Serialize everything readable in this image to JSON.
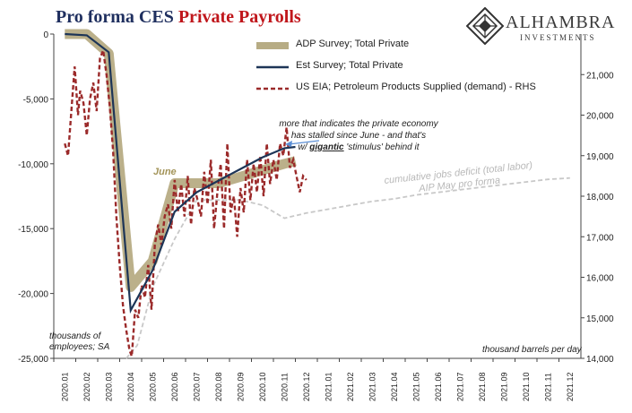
{
  "title_part1": "Pro forma CES ",
  "title_part2": "Private Payrolls",
  "logo": {
    "name": "ALHAMBRA",
    "sub": "INVESTMENTS",
    "icon": "diamond-lattice-icon"
  },
  "colors": {
    "adp": "#b7ac84",
    "est": "#1d3557",
    "eia": "#9b2a2a",
    "deficit": "#c8c8c8",
    "june": "#a39459"
  },
  "annotations": {
    "right_text_line1": "more that indicates the private economy",
    "right_text_line2": "has stalled since June - and that's",
    "right_text_line3_prefix": "w/ ",
    "right_text_line3_emph": "gigantic",
    "right_text_line3_suffix": " 'stimulus' behind it",
    "june": "June",
    "deficit_line1": "cumulative jobs deficit (total labor)",
    "deficit_line2": "AIP May pro forma",
    "left_unit": "thousands of employees; SA",
    "right_unit": "thousand barrels per day"
  },
  "chart_data": {
    "type": "line",
    "title": "Pro forma CES Private Payrolls",
    "x": [
      "2020.01",
      "2020.02",
      "2020.03",
      "2020.04",
      "2020.05",
      "2020.06",
      "2020.07",
      "2020.08",
      "2020.09",
      "2020.10",
      "2020.11",
      "2020.12",
      "2021.01",
      "2021.02",
      "2021.03",
      "2021.04",
      "2021.05",
      "2021.06",
      "2021.07",
      "2021.08",
      "2021.09",
      "2021.10",
      "2021.11",
      "2021.12"
    ],
    "y_left": {
      "label": "thousands of employees; SA",
      "min": -25000,
      "max": 0,
      "ticks": [
        0,
        -5000,
        -10000,
        -15000,
        -20000,
        -25000
      ],
      "tick_labels": [
        "0",
        "-5,000",
        "-10,000",
        "-15,000",
        "-20,000",
        "-25,000"
      ]
    },
    "y_right": {
      "label": "thousand barrels per day",
      "min": 14000,
      "max": 22000,
      "ticks": [
        14000,
        15000,
        16000,
        17000,
        18000,
        19000,
        20000,
        21000
      ],
      "tick_labels": [
        "14,000",
        "15,000",
        "16,000",
        "17,000",
        "18,000",
        "19,000",
        "20,000",
        "21,000"
      ]
    },
    "legend_position": "top-center",
    "series": [
      {
        "name": "ADP Survey; Total Private",
        "axis": "left",
        "style": "band",
        "points": [
          [
            0,
            0
          ],
          [
            1,
            0
          ],
          [
            2,
            -1500
          ],
          [
            3,
            -19500
          ],
          [
            4,
            -17500
          ],
          [
            5,
            -11500
          ],
          [
            6,
            -11500
          ],
          [
            7,
            -11500
          ],
          [
            8,
            -11000
          ],
          [
            9,
            -10500
          ],
          [
            10,
            -10000
          ],
          [
            10.5,
            -9800
          ]
        ]
      },
      {
        "name": "Est Survey; Total Private",
        "axis": "left",
        "style": "line",
        "points": [
          [
            0,
            0
          ],
          [
            1,
            -100
          ],
          [
            2,
            -1400
          ],
          [
            3,
            -21300
          ],
          [
            4,
            -18200
          ],
          [
            5,
            -13700
          ],
          [
            6,
            -12200
          ],
          [
            7,
            -11300
          ],
          [
            8,
            -10400
          ],
          [
            9,
            -9500
          ],
          [
            10,
            -8800
          ],
          [
            10.5,
            -8700
          ]
        ]
      },
      {
        "name": "US EIA; Petroleum Products Supplied (demand) - RHS",
        "axis": "right",
        "style": "dashed",
        "points": [
          [
            0,
            19300
          ],
          [
            0.15,
            19000
          ],
          [
            0.3,
            20100
          ],
          [
            0.45,
            21200
          ],
          [
            0.6,
            20000
          ],
          [
            0.7,
            20600
          ],
          [
            0.85,
            20300
          ],
          [
            1.0,
            19500
          ],
          [
            1.15,
            20400
          ],
          [
            1.3,
            20800
          ],
          [
            1.45,
            20100
          ],
          [
            1.6,
            21400
          ],
          [
            1.75,
            21600
          ],
          [
            1.9,
            21000
          ],
          [
            2.05,
            20200
          ],
          [
            2.2,
            19100
          ],
          [
            2.35,
            17500
          ],
          [
            2.5,
            16300
          ],
          [
            2.65,
            15300
          ],
          [
            2.8,
            14700
          ],
          [
            2.95,
            14200
          ],
          [
            3.05,
            14050
          ],
          [
            3.2,
            15200
          ],
          [
            3.35,
            15000
          ],
          [
            3.5,
            15800
          ],
          [
            3.65,
            15500
          ],
          [
            3.8,
            16300
          ],
          [
            3.95,
            15200
          ],
          [
            4.1,
            16800
          ],
          [
            4.25,
            17300
          ],
          [
            4.4,
            16800
          ],
          [
            4.55,
            17500
          ],
          [
            4.7,
            17800
          ],
          [
            4.85,
            17200
          ],
          [
            5.0,
            18400
          ],
          [
            5.15,
            17600
          ],
          [
            5.3,
            18300
          ],
          [
            5.45,
            17500
          ],
          [
            5.6,
            18500
          ],
          [
            5.75,
            17300
          ],
          [
            5.9,
            18200
          ],
          [
            6.05,
            17900
          ],
          [
            6.2,
            17500
          ],
          [
            6.35,
            18600
          ],
          [
            6.5,
            17800
          ],
          [
            6.65,
            18900
          ],
          [
            6.8,
            17200
          ],
          [
            6.95,
            18100
          ],
          [
            7.1,
            18800
          ],
          [
            7.25,
            17200
          ],
          [
            7.4,
            19300
          ],
          [
            7.55,
            17600
          ],
          [
            7.7,
            18000
          ],
          [
            7.85,
            17000
          ],
          [
            8.0,
            18200
          ],
          [
            8.15,
            17600
          ],
          [
            8.3,
            18900
          ],
          [
            8.45,
            17900
          ],
          [
            8.6,
            18800
          ],
          [
            8.75,
            18100
          ],
          [
            8.9,
            19000
          ],
          [
            9.05,
            18000
          ],
          [
            9.2,
            19300
          ],
          [
            9.35,
            18300
          ],
          [
            9.5,
            18900
          ],
          [
            9.65,
            18400
          ],
          [
            9.8,
            19300
          ],
          [
            9.95,
            19000
          ],
          [
            10.1,
            19700
          ],
          [
            10.25,
            18700
          ],
          [
            10.4,
            18900
          ],
          [
            10.55,
            18500
          ],
          [
            10.7,
            18100
          ],
          [
            10.85,
            18500
          ],
          [
            11.0,
            18400
          ]
        ]
      },
      {
        "name": "cumulative jobs deficit (total labor) AIP May pro forma",
        "axis": "left",
        "style": "gray-dashed",
        "points": [
          [
            2.8,
            -25000
          ],
          [
            3.3,
            -24000
          ],
          [
            4.0,
            -19500
          ],
          [
            5.0,
            -15800
          ],
          [
            6.0,
            -12800
          ],
          [
            7.0,
            -12800
          ],
          [
            8.0,
            -12800
          ],
          [
            9.0,
            -13200
          ],
          [
            10.0,
            -14200
          ],
          [
            11.0,
            -13800
          ],
          [
            12.0,
            -13500
          ],
          [
            13.0,
            -13200
          ],
          [
            14.0,
            -12900
          ],
          [
            15.0,
            -12700
          ],
          [
            16.0,
            -12400
          ],
          [
            17.0,
            -12200
          ],
          [
            18.0,
            -12000
          ],
          [
            19.0,
            -11800
          ],
          [
            20.0,
            -11600
          ],
          [
            21.0,
            -11400
          ],
          [
            22.0,
            -11200
          ],
          [
            23.0,
            -11100
          ]
        ]
      }
    ]
  }
}
